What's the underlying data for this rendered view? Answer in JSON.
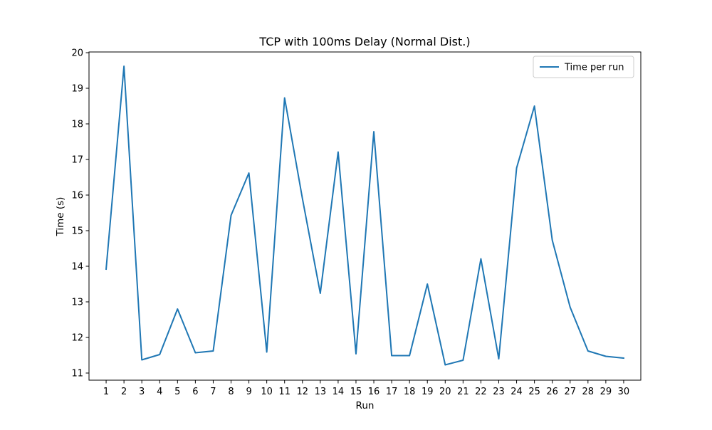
{
  "chart_data": {
    "type": "line",
    "title": "TCP with 100ms Delay (Normal Dist.)",
    "xlabel": "Run",
    "ylabel": "Time (s)",
    "x": [
      1,
      2,
      3,
      4,
      5,
      6,
      7,
      8,
      9,
      10,
      11,
      12,
      13,
      14,
      15,
      16,
      17,
      18,
      19,
      20,
      21,
      22,
      23,
      24,
      25,
      26,
      27,
      28,
      29,
      30
    ],
    "series": [
      {
        "name": "Time per run",
        "color": "#1f77b4",
        "values": [
          13.92,
          19.62,
          11.37,
          11.52,
          12.8,
          11.57,
          11.62,
          15.43,
          16.62,
          11.59,
          18.73,
          15.9,
          13.24,
          17.21,
          11.54,
          17.78,
          11.49,
          11.49,
          13.5,
          11.23,
          11.36,
          14.21,
          11.4,
          16.76,
          18.5,
          14.73,
          12.85,
          11.62,
          11.47,
          11.42
        ]
      }
    ],
    "xlim": [
      0.04,
      30.96
    ],
    "ylim": [
      10.8,
      20.02
    ],
    "xticks": [
      "1",
      "2",
      "3",
      "4",
      "5",
      "6",
      "7",
      "8",
      "9",
      "10",
      "11",
      "12",
      "13",
      "14",
      "15",
      "16",
      "17",
      "18",
      "19",
      "20",
      "21",
      "22",
      "23",
      "24",
      "25",
      "26",
      "27",
      "28",
      "29",
      "30"
    ],
    "yticks": [
      "11",
      "12",
      "13",
      "14",
      "15",
      "16",
      "17",
      "18",
      "19",
      "20"
    ],
    "legend": "top-right",
    "grid": false
  }
}
